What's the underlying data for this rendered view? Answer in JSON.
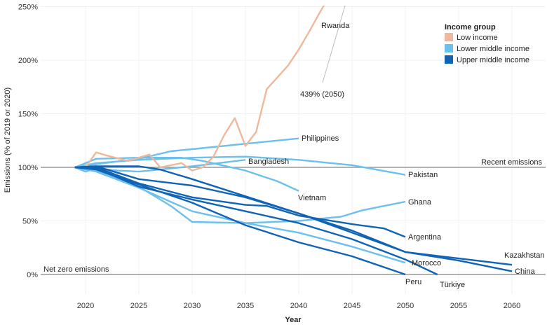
{
  "chart_data": {
    "type": "line",
    "title": "",
    "xlabel": "Year",
    "ylabel": "Emissions (% of 2019 or 2020)",
    "xlim": [
      2016,
      2063
    ],
    "ylim": [
      -18,
      252
    ],
    "x_ticks": [
      2020,
      2025,
      2030,
      2035,
      2040,
      2045,
      2050,
      2055,
      2060
    ],
    "y_ticks": [
      0,
      50,
      100,
      150,
      200,
      250
    ],
    "y_tick_labels": [
      "0%",
      "50%",
      "100%",
      "150%",
      "200%",
      "250%"
    ],
    "grid": true,
    "legend": {
      "title": "Income group",
      "placement": "top-right",
      "entries": [
        {
          "name": "Low income",
          "color": "#EDB89C"
        },
        {
          "name": "Lower middle income",
          "color": "#6CC0EC"
        },
        {
          "name": "Upper middle income",
          "color": "#1163B5"
        }
      ]
    },
    "reference_lines": [
      {
        "value": 100,
        "label": "Recent emissions"
      },
      {
        "value": 0,
        "label": "Net zero emissions"
      }
    ],
    "annotations": [
      {
        "text": "439% (2050)",
        "series": "Rwanda"
      }
    ],
    "series": [
      {
        "name": "Rwanda",
        "group": "Low income",
        "points": [
          [
            2020,
            100
          ],
          [
            2021,
            114
          ],
          [
            2022,
            111
          ],
          [
            2024,
            106
          ],
          [
            2026,
            112
          ],
          [
            2027,
            100
          ],
          [
            2029,
            104
          ],
          [
            2030,
            97
          ],
          [
            2031,
            100
          ],
          [
            2032,
            110
          ],
          [
            2033,
            130
          ],
          [
            2034,
            146
          ],
          [
            2035,
            120
          ],
          [
            2036,
            133
          ],
          [
            2037,
            173
          ],
          [
            2039,
            195
          ],
          [
            2040,
            210
          ],
          [
            2041,
            227
          ],
          [
            2042,
            245
          ],
          [
            2043,
            262
          ],
          [
            2050,
            439
          ]
        ]
      },
      {
        "name": "Philippines",
        "group": "Lower middle income",
        "points": [
          [
            2019,
            100
          ],
          [
            2021,
            103
          ],
          [
            2025,
            108
          ],
          [
            2028,
            115
          ],
          [
            2030,
            117
          ],
          [
            2035,
            122
          ],
          [
            2040,
            127
          ]
        ]
      },
      {
        "name": "Bangladesh",
        "group": "Lower middle income",
        "points": [
          [
            2019,
            100
          ],
          [
            2020,
            96
          ],
          [
            2021,
            99
          ],
          [
            2023,
            97
          ],
          [
            2025,
            96
          ],
          [
            2030,
            101
          ],
          [
            2035,
            107
          ]
        ]
      },
      {
        "name": "Pakistan",
        "group": "Lower middle income",
        "points": [
          [
            2019,
            100
          ],
          [
            2021,
            104
          ],
          [
            2025,
            107
          ],
          [
            2030,
            109
          ],
          [
            2035,
            110
          ],
          [
            2040,
            107
          ],
          [
            2045,
            102
          ],
          [
            2050,
            93
          ]
        ]
      },
      {
        "name": "Vietnam",
        "group": "Lower middle income",
        "points": [
          [
            2019,
            100
          ],
          [
            2021,
            108
          ],
          [
            2025,
            109
          ],
          [
            2029,
            109
          ],
          [
            2031,
            106
          ],
          [
            2035,
            97
          ],
          [
            2038,
            87
          ],
          [
            2040,
            78
          ]
        ]
      },
      {
        "name": "Ghana",
        "group": "Lower middle income",
        "points": [
          [
            2019,
            100
          ],
          [
            2021,
            97
          ],
          [
            2025,
            82
          ],
          [
            2028,
            64
          ],
          [
            2030,
            49
          ],
          [
            2035,
            48
          ],
          [
            2040,
            50
          ],
          [
            2044,
            54
          ],
          [
            2046,
            60
          ],
          [
            2050,
            68
          ]
        ]
      },
      {
        "name": "Morocco",
        "group": "Lower middle income",
        "points": [
          [
            2019,
            100
          ],
          [
            2021,
            96
          ],
          [
            2025,
            81
          ],
          [
            2030,
            59
          ],
          [
            2035,
            48
          ],
          [
            2040,
            39
          ],
          [
            2045,
            26
          ],
          [
            2050,
            11
          ]
        ]
      },
      {
        "name": "China",
        "group": "Upper middle income",
        "points": [
          [
            2019,
            100
          ],
          [
            2021,
            101
          ],
          [
            2025,
            101
          ],
          [
            2027,
            98
          ],
          [
            2030,
            89
          ],
          [
            2035,
            73
          ],
          [
            2040,
            57
          ],
          [
            2045,
            39
          ],
          [
            2050,
            21
          ],
          [
            2055,
            13
          ],
          [
            2060,
            3
          ]
        ]
      },
      {
        "name": "Kazakhstan",
        "group": "Upper middle income",
        "points": [
          [
            2019,
            100
          ],
          [
            2021,
            101
          ],
          [
            2023,
            95
          ],
          [
            2025,
            89
          ],
          [
            2030,
            83
          ],
          [
            2035,
            72
          ],
          [
            2040,
            57
          ],
          [
            2045,
            41
          ],
          [
            2050,
            21
          ],
          [
            2055,
            15
          ],
          [
            2060,
            9
          ]
        ]
      },
      {
        "name": "Argentina",
        "group": "Upper middle income",
        "points": [
          [
            2019,
            100
          ],
          [
            2021,
            100
          ],
          [
            2025,
            85
          ],
          [
            2030,
            72
          ],
          [
            2035,
            65
          ],
          [
            2037,
            64
          ],
          [
            2040,
            55
          ],
          [
            2045,
            47
          ],
          [
            2048,
            43
          ],
          [
            2050,
            35
          ]
        ]
      },
      {
        "name": "Türkiye",
        "group": "Upper middle income",
        "points": [
          [
            2019,
            100
          ],
          [
            2021,
            99
          ],
          [
            2025,
            82
          ],
          [
            2030,
            70
          ],
          [
            2035,
            59
          ],
          [
            2040,
            48
          ],
          [
            2045,
            33
          ],
          [
            2050,
            14
          ],
          [
            2053,
            0
          ]
        ]
      },
      {
        "name": "Peru",
        "group": "Upper middle income",
        "points": [
          [
            2019,
            100
          ],
          [
            2021,
            98
          ],
          [
            2025,
            84
          ],
          [
            2030,
            67
          ],
          [
            2035,
            46
          ],
          [
            2040,
            30
          ],
          [
            2045,
            17
          ],
          [
            2050,
            0
          ]
        ]
      }
    ]
  }
}
